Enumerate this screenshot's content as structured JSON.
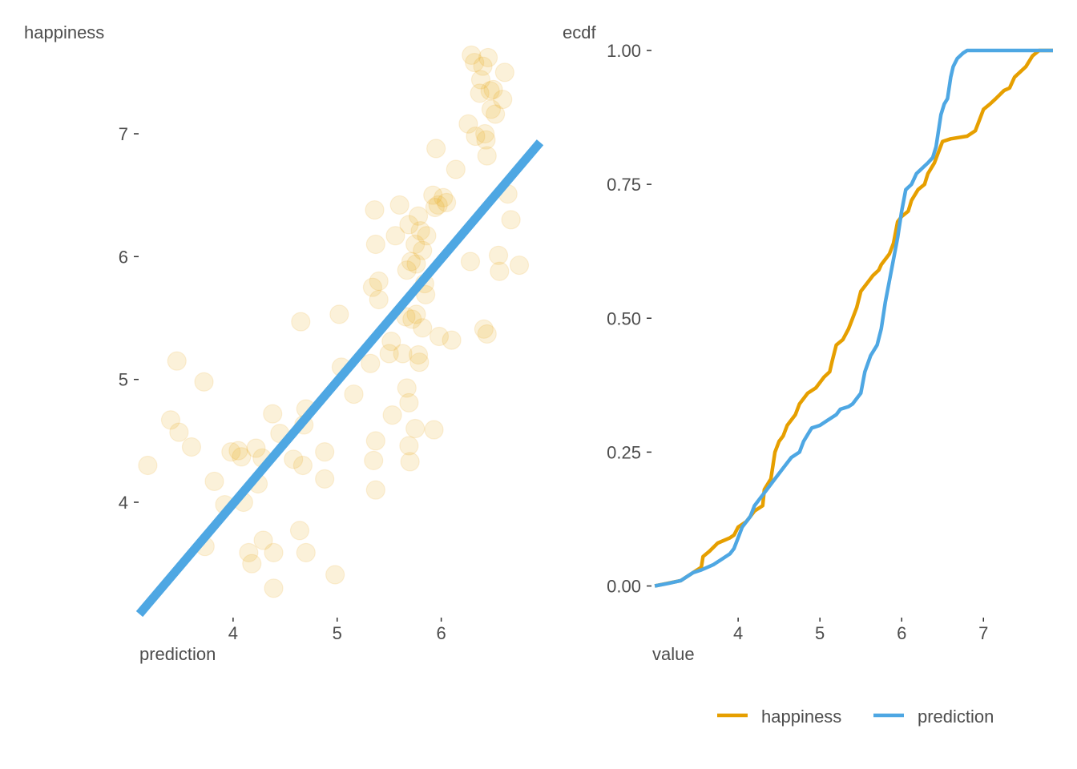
{
  "colors": {
    "happiness": "#E69F00",
    "prediction": "#4EA7E3",
    "text": "#4d4d4d",
    "tick": "#333333"
  },
  "chart_data": [
    {
      "type": "scatter",
      "xlabel": "prediction",
      "ylabel": "happiness",
      "xlim": [
        3.1,
        6.95
      ],
      "ylim": [
        3.1,
        7.75
      ],
      "xticks": [
        4,
        5,
        6
      ],
      "yticks": [
        4,
        5,
        6,
        7
      ],
      "grid": false,
      "point_alpha": 0.15,
      "points": [
        [
          3.18,
          4.3
        ],
        [
          3.4,
          4.67
        ],
        [
          3.46,
          5.15
        ],
        [
          3.48,
          4.57
        ],
        [
          3.6,
          4.45
        ],
        [
          3.72,
          4.98
        ],
        [
          3.73,
          3.64
        ],
        [
          3.82,
          4.17
        ],
        [
          3.92,
          3.98
        ],
        [
          3.98,
          4.41
        ],
        [
          4.05,
          4.42
        ],
        [
          4.08,
          4.37
        ],
        [
          4.1,
          4.0
        ],
        [
          4.15,
          3.59
        ],
        [
          4.18,
          3.5
        ],
        [
          4.22,
          4.44
        ],
        [
          4.24,
          4.15
        ],
        [
          4.28,
          4.36
        ],
        [
          4.29,
          3.69
        ],
        [
          4.38,
          4.72
        ],
        [
          4.39,
          3.59
        ],
        [
          4.39,
          3.3
        ],
        [
          4.45,
          4.56
        ],
        [
          4.58,
          4.35
        ],
        [
          4.64,
          3.77
        ],
        [
          4.65,
          5.47
        ],
        [
          4.67,
          4.3
        ],
        [
          4.68,
          4.63
        ],
        [
          4.7,
          3.59
        ],
        [
          4.7,
          4.76
        ],
        [
          4.88,
          4.41
        ],
        [
          4.88,
          4.19
        ],
        [
          4.98,
          3.41
        ],
        [
          5.02,
          5.53
        ],
        [
          5.04,
          5.1
        ],
        [
          5.16,
          4.88
        ],
        [
          5.32,
          5.13
        ],
        [
          5.34,
          5.75
        ],
        [
          5.35,
          4.34
        ],
        [
          5.36,
          6.38
        ],
        [
          5.37,
          4.5
        ],
        [
          5.37,
          4.1
        ],
        [
          5.37,
          6.1
        ],
        [
          5.4,
          5.65
        ],
        [
          5.4,
          5.8
        ],
        [
          5.5,
          5.21
        ],
        [
          5.52,
          5.31
        ],
        [
          5.53,
          4.71
        ],
        [
          5.56,
          6.17
        ],
        [
          5.6,
          6.42
        ],
        [
          5.63,
          5.21
        ],
        [
          5.66,
          5.51
        ],
        [
          5.67,
          5.89
        ],
        [
          5.67,
          4.93
        ],
        [
          5.69,
          4.81
        ],
        [
          5.69,
          4.46
        ],
        [
          5.69,
          6.26
        ],
        [
          5.7,
          4.33
        ],
        [
          5.71,
          5.96
        ],
        [
          5.72,
          5.49
        ],
        [
          5.75,
          6.1
        ],
        [
          5.75,
          4.6
        ],
        [
          5.76,
          5.53
        ],
        [
          5.76,
          5.94
        ],
        [
          5.78,
          5.2
        ],
        [
          5.78,
          6.33
        ],
        [
          5.79,
          5.14
        ],
        [
          5.8,
          6.21
        ],
        [
          5.82,
          6.05
        ],
        [
          5.82,
          5.42
        ],
        [
          5.84,
          5.78
        ],
        [
          5.85,
          5.69
        ],
        [
          5.86,
          6.17
        ],
        [
          5.92,
          6.5
        ],
        [
          5.93,
          4.59
        ],
        [
          5.94,
          6.4
        ],
        [
          5.95,
          6.88
        ],
        [
          5.97,
          6.42
        ],
        [
          5.98,
          5.35
        ],
        [
          6.02,
          6.48
        ],
        [
          6.05,
          6.44
        ],
        [
          6.1,
          5.32
        ],
        [
          6.14,
          6.71
        ],
        [
          6.26,
          7.08
        ],
        [
          6.28,
          5.96
        ],
        [
          6.29,
          7.64
        ],
        [
          6.32,
          7.58
        ],
        [
          6.33,
          6.98
        ],
        [
          6.37,
          7.33
        ],
        [
          6.38,
          7.44
        ],
        [
          6.4,
          7.55
        ],
        [
          6.41,
          5.41
        ],
        [
          6.42,
          7.0
        ],
        [
          6.43,
          6.95
        ],
        [
          6.44,
          6.82
        ],
        [
          6.44,
          5.37
        ],
        [
          6.45,
          7.62
        ],
        [
          6.47,
          7.35
        ],
        [
          6.48,
          7.2
        ],
        [
          6.5,
          7.36
        ],
        [
          6.52,
          7.16
        ],
        [
          6.55,
          6.01
        ],
        [
          6.56,
          5.88
        ],
        [
          6.59,
          7.28
        ],
        [
          6.61,
          7.5
        ],
        [
          6.64,
          6.51
        ],
        [
          6.67,
          6.3
        ],
        [
          6.75,
          5.93
        ]
      ],
      "fit_line": {
        "x": [
          3.1,
          6.95
        ],
        "y": [
          3.09,
          6.93
        ]
      }
    },
    {
      "type": "line",
      "xlabel": "value",
      "ylabel": "ecdf",
      "xlim": [
        2.95,
        7.85
      ],
      "ylim": [
        -0.08,
        1.0
      ],
      "xticks": [
        4,
        5,
        6,
        7
      ],
      "yticks": [
        0.0,
        0.25,
        0.5,
        0.75,
        1.0
      ],
      "ytick_labels": [
        "0.00",
        "0.25",
        "0.50",
        "0.75",
        "1.00"
      ],
      "grid": false,
      "legend": "bottom",
      "series": [
        {
          "name": "happiness",
          "points": [
            [
              2.98,
              0.0
            ],
            [
              3.3,
              0.01
            ],
            [
              3.45,
              0.025
            ],
            [
              3.55,
              0.035
            ],
            [
              3.57,
              0.055
            ],
            [
              3.65,
              0.065
            ],
            [
              3.75,
              0.08
            ],
            [
              3.9,
              0.09
            ],
            [
              3.95,
              0.095
            ],
            [
              4.0,
              0.11
            ],
            [
              4.1,
              0.12
            ],
            [
              4.15,
              0.13
            ],
            [
              4.2,
              0.14
            ],
            [
              4.3,
              0.15
            ],
            [
              4.32,
              0.18
            ],
            [
              4.4,
              0.2
            ],
            [
              4.45,
              0.25
            ],
            [
              4.5,
              0.27
            ],
            [
              4.55,
              0.28
            ],
            [
              4.6,
              0.3
            ],
            [
              4.7,
              0.32
            ],
            [
              4.75,
              0.34
            ],
            [
              4.85,
              0.36
            ],
            [
              4.95,
              0.37
            ],
            [
              5.05,
              0.39
            ],
            [
              5.12,
              0.4
            ],
            [
              5.15,
              0.42
            ],
            [
              5.2,
              0.45
            ],
            [
              5.28,
              0.46
            ],
            [
              5.35,
              0.48
            ],
            [
              5.4,
              0.5
            ],
            [
              5.45,
              0.52
            ],
            [
              5.5,
              0.55
            ],
            [
              5.55,
              0.56
            ],
            [
              5.6,
              0.57
            ],
            [
              5.65,
              0.58
            ],
            [
              5.72,
              0.59
            ],
            [
              5.75,
              0.6
            ],
            [
              5.85,
              0.62
            ],
            [
              5.9,
              0.64
            ],
            [
              5.95,
              0.68
            ],
            [
              6.0,
              0.69
            ],
            [
              6.08,
              0.7
            ],
            [
              6.12,
              0.72
            ],
            [
              6.2,
              0.74
            ],
            [
              6.28,
              0.75
            ],
            [
              6.32,
              0.77
            ],
            [
              6.4,
              0.79
            ],
            [
              6.45,
              0.81
            ],
            [
              6.5,
              0.83
            ],
            [
              6.6,
              0.835
            ],
            [
              6.8,
              0.84
            ],
            [
              6.9,
              0.85
            ],
            [
              6.95,
              0.87
            ],
            [
              7.0,
              0.89
            ],
            [
              7.08,
              0.9
            ],
            [
              7.15,
              0.91
            ],
            [
              7.25,
              0.925
            ],
            [
              7.32,
              0.93
            ],
            [
              7.38,
              0.95
            ],
            [
              7.45,
              0.96
            ],
            [
              7.52,
              0.97
            ],
            [
              7.6,
              0.99
            ],
            [
              7.68,
              1.0
            ],
            [
              7.85,
              1.0
            ]
          ]
        },
        {
          "name": "prediction",
          "points": [
            [
              2.98,
              0.0
            ],
            [
              3.15,
              0.005
            ],
            [
              3.3,
              0.01
            ],
            [
              3.4,
              0.02
            ],
            [
              3.45,
              0.025
            ],
            [
              3.55,
              0.03
            ],
            [
              3.7,
              0.04
            ],
            [
              3.8,
              0.05
            ],
            [
              3.9,
              0.06
            ],
            [
              3.95,
              0.07
            ],
            [
              4.0,
              0.09
            ],
            [
              4.05,
              0.11
            ],
            [
              4.15,
              0.13
            ],
            [
              4.2,
              0.15
            ],
            [
              4.3,
              0.17
            ],
            [
              4.35,
              0.18
            ],
            [
              4.45,
              0.2
            ],
            [
              4.55,
              0.22
            ],
            [
              4.65,
              0.24
            ],
            [
              4.75,
              0.25
            ],
            [
              4.8,
              0.27
            ],
            [
              4.88,
              0.29
            ],
            [
              4.9,
              0.295
            ],
            [
              5.0,
              0.3
            ],
            [
              5.1,
              0.31
            ],
            [
              5.2,
              0.32
            ],
            [
              5.25,
              0.33
            ],
            [
              5.35,
              0.335
            ],
            [
              5.4,
              0.34
            ],
            [
              5.45,
              0.35
            ],
            [
              5.5,
              0.36
            ],
            [
              5.55,
              0.4
            ],
            [
              5.62,
              0.43
            ],
            [
              5.7,
              0.45
            ],
            [
              5.75,
              0.48
            ],
            [
              5.8,
              0.53
            ],
            [
              5.85,
              0.57
            ],
            [
              5.9,
              0.61
            ],
            [
              5.95,
              0.65
            ],
            [
              6.0,
              0.7
            ],
            [
              6.05,
              0.74
            ],
            [
              6.12,
              0.75
            ],
            [
              6.18,
              0.77
            ],
            [
              6.25,
              0.78
            ],
            [
              6.32,
              0.79
            ],
            [
              6.38,
              0.8
            ],
            [
              6.42,
              0.82
            ],
            [
              6.48,
              0.88
            ],
            [
              6.52,
              0.9
            ],
            [
              6.56,
              0.91
            ],
            [
              6.6,
              0.95
            ],
            [
              6.63,
              0.97
            ],
            [
              6.68,
              0.985
            ],
            [
              6.75,
              0.995
            ],
            [
              6.8,
              1.0
            ],
            [
              7.85,
              1.0
            ]
          ]
        }
      ]
    }
  ]
}
